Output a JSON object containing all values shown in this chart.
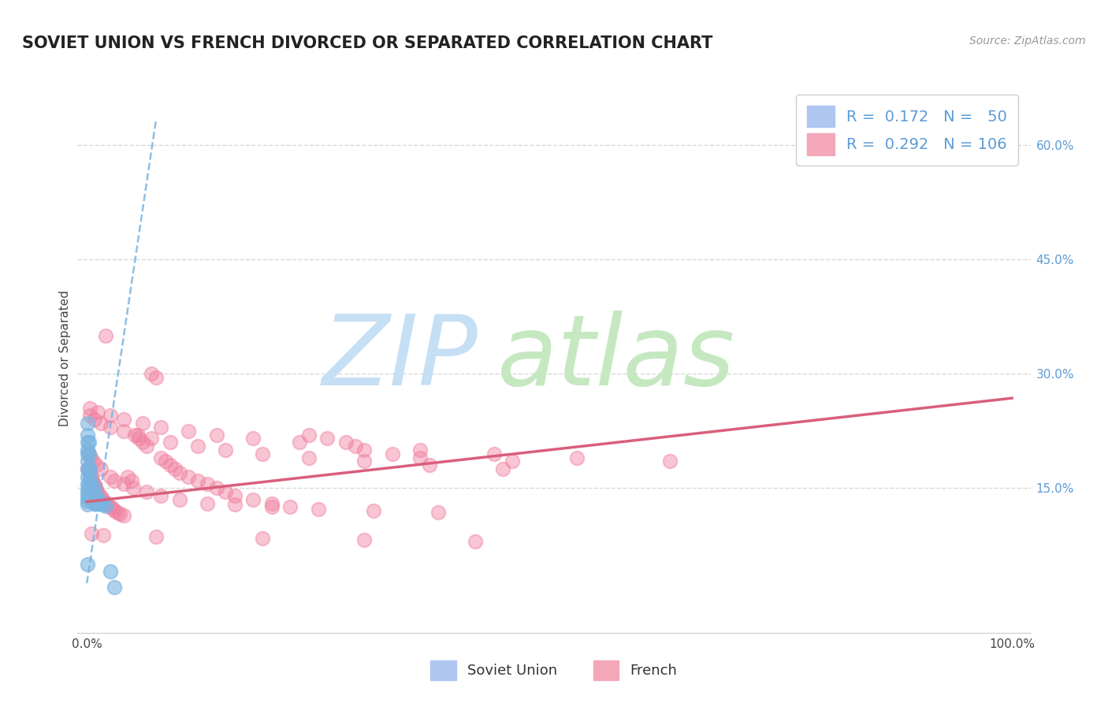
{
  "title": "SOVIET UNION VS FRENCH DIVORCED OR SEPARATED CORRELATION CHART",
  "source": "Source: ZipAtlas.com",
  "ylabel": "Divorced or Separated",
  "xlim": [
    -0.01,
    1.02
  ],
  "ylim": [
    -0.04,
    0.68
  ],
  "y_ticks": [
    0.15,
    0.3,
    0.45,
    0.6
  ],
  "soviet_color": "#7ab4e0",
  "french_color": "#f080a0",
  "soviet_trend_color": "#7ab4e0",
  "french_trend_color": "#d95f7a",
  "background_color": "#ffffff",
  "grid_color": "#d8d8d8",
  "title_fontsize": 15,
  "axis_label_fontsize": 11,
  "tick_fontsize": 11,
  "legend_fontsize": 14,
  "sov_trend_x0": 0.0,
  "sov_trend_y0": 0.025,
  "sov_trend_x1": 0.075,
  "sov_trend_y1": 0.635,
  "fr_trend_x0": 0.0,
  "fr_trend_y0": 0.132,
  "fr_trend_x1": 1.0,
  "fr_trend_y1": 0.268,
  "soviet_x": [
    0.001,
    0.001,
    0.001,
    0.001,
    0.001,
    0.001,
    0.001,
    0.001,
    0.001,
    0.001,
    0.001,
    0.001,
    0.001,
    0.001,
    0.001,
    0.002,
    0.002,
    0.002,
    0.002,
    0.002,
    0.003,
    0.003,
    0.003,
    0.003,
    0.003,
    0.004,
    0.004,
    0.004,
    0.005,
    0.005,
    0.005,
    0.006,
    0.006,
    0.007,
    0.007,
    0.008,
    0.008,
    0.009,
    0.009,
    0.01,
    0.01,
    0.011,
    0.012,
    0.013,
    0.014,
    0.015,
    0.017,
    0.02,
    0.025,
    0.03
  ],
  "soviet_y": [
    0.235,
    0.22,
    0.21,
    0.2,
    0.195,
    0.185,
    0.175,
    0.165,
    0.155,
    0.148,
    0.143,
    0.138,
    0.133,
    0.128,
    0.05,
    0.21,
    0.195,
    0.175,
    0.155,
    0.145,
    0.175,
    0.165,
    0.155,
    0.145,
    0.135,
    0.155,
    0.145,
    0.135,
    0.155,
    0.145,
    0.135,
    0.145,
    0.135,
    0.145,
    0.135,
    0.14,
    0.13,
    0.14,
    0.13,
    0.14,
    0.13,
    0.135,
    0.13,
    0.135,
    0.13,
    0.13,
    0.128,
    0.126,
    0.04,
    0.02
  ],
  "french_x": [
    0.001,
    0.002,
    0.003,
    0.004,
    0.005,
    0.006,
    0.007,
    0.008,
    0.009,
    0.01,
    0.012,
    0.014,
    0.016,
    0.018,
    0.02,
    0.022,
    0.025,
    0.028,
    0.03,
    0.033,
    0.036,
    0.04,
    0.044,
    0.048,
    0.052,
    0.056,
    0.06,
    0.065,
    0.07,
    0.075,
    0.08,
    0.085,
    0.09,
    0.095,
    0.1,
    0.11,
    0.12,
    0.13,
    0.14,
    0.15,
    0.16,
    0.18,
    0.2,
    0.22,
    0.24,
    0.26,
    0.28,
    0.3,
    0.33,
    0.36,
    0.002,
    0.004,
    0.007,
    0.01,
    0.015,
    0.02,
    0.025,
    0.03,
    0.04,
    0.05,
    0.065,
    0.08,
    0.1,
    0.13,
    0.16,
    0.2,
    0.25,
    0.31,
    0.38,
    0.46,
    0.003,
    0.008,
    0.015,
    0.025,
    0.04,
    0.055,
    0.07,
    0.09,
    0.12,
    0.15,
    0.19,
    0.24,
    0.3,
    0.37,
    0.45,
    0.003,
    0.012,
    0.025,
    0.04,
    0.06,
    0.08,
    0.11,
    0.14,
    0.18,
    0.23,
    0.29,
    0.36,
    0.44,
    0.53,
    0.63,
    0.005,
    0.018,
    0.075,
    0.19,
    0.3,
    0.42
  ],
  "french_y": [
    0.175,
    0.172,
    0.169,
    0.166,
    0.163,
    0.16,
    0.157,
    0.154,
    0.151,
    0.148,
    0.144,
    0.14,
    0.137,
    0.134,
    0.131,
    0.128,
    0.125,
    0.123,
    0.12,
    0.118,
    0.116,
    0.114,
    0.165,
    0.16,
    0.22,
    0.215,
    0.21,
    0.205,
    0.3,
    0.295,
    0.19,
    0.185,
    0.18,
    0.175,
    0.17,
    0.165,
    0.16,
    0.155,
    0.15,
    0.145,
    0.14,
    0.135,
    0.13,
    0.125,
    0.22,
    0.215,
    0.21,
    0.2,
    0.195,
    0.19,
    0.195,
    0.19,
    0.185,
    0.18,
    0.175,
    0.35,
    0.165,
    0.16,
    0.155,
    0.15,
    0.145,
    0.14,
    0.135,
    0.13,
    0.128,
    0.125,
    0.122,
    0.12,
    0.118,
    0.185,
    0.245,
    0.24,
    0.235,
    0.23,
    0.225,
    0.22,
    0.215,
    0.21,
    0.205,
    0.2,
    0.195,
    0.19,
    0.185,
    0.18,
    0.175,
    0.255,
    0.25,
    0.245,
    0.24,
    0.235,
    0.23,
    0.225,
    0.22,
    0.215,
    0.21,
    0.205,
    0.2,
    0.195,
    0.19,
    0.185,
    0.09,
    0.088,
    0.086,
    0.084,
    0.082,
    0.08
  ]
}
